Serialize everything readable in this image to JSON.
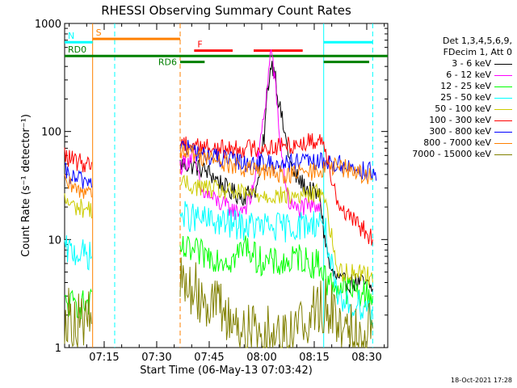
{
  "chart_data": {
    "type": "line",
    "title": "RHESSI Observing Summary Count Rates",
    "xlabel": "Start Time (06-May-13 07:03:42)",
    "ylabel": "Count Rate (s⁻¹ detector⁻¹)",
    "x_ticks": [
      "07:15",
      "07:30",
      "07:45",
      "08:00",
      "08:15",
      "08:30"
    ],
    "x_tick_minutes": [
      11.3,
      26.3,
      41.3,
      56.3,
      71.3,
      86.3
    ],
    "xlim_minutes": [
      0,
      92.3
    ],
    "y_scale": "log",
    "ylim": [
      1,
      1000
    ],
    "y_tick_labels": [
      "1",
      "10",
      "100",
      "1000"
    ],
    "flags": [
      {
        "label": "S",
        "color": "#ff8000",
        "segments": [
          [
            8,
            33
          ]
        ],
        "value": 720
      },
      {
        "label": "N",
        "color": "#00ffff",
        "segments": [
          [
            0,
            8
          ],
          [
            74,
            88
          ]
        ],
        "value": 670
      },
      {
        "label": "F",
        "color": "#ff0000",
        "segments": [
          [
            37,
            48
          ],
          [
            54,
            68
          ]
        ],
        "value": 560
      },
      {
        "label": "RD0",
        "color": "#008000",
        "segments": [
          [
            0,
            92.3
          ]
        ],
        "value": 500
      },
      {
        "label": "RD6",
        "color": "#008000",
        "segments": [
          [
            33,
            40
          ],
          [
            74,
            87
          ]
        ],
        "value": 440
      }
    ],
    "series": [
      {
        "name": "3 - 6 keV",
        "color": "#000000",
        "points": [
          [
            33,
            50
          ],
          [
            37,
            48
          ],
          [
            41,
            42
          ],
          [
            44,
            35
          ],
          [
            47,
            28
          ],
          [
            51,
            25
          ],
          [
            55,
            30
          ],
          [
            57,
            90
          ],
          [
            58,
            250
          ],
          [
            59,
            420
          ],
          [
            60,
            380
          ],
          [
            61,
            200
          ],
          [
            63,
            90
          ],
          [
            65,
            42
          ],
          [
            69,
            30
          ],
          [
            73,
            25
          ],
          [
            74,
            12
          ],
          [
            76,
            5
          ],
          [
            79,
            4
          ],
          [
            85,
            4
          ],
          [
            88,
            3.5
          ]
        ]
      },
      {
        "name": "6 - 12 keV",
        "color": "#ff00ff",
        "points": [
          [
            33,
            48
          ],
          [
            37,
            60
          ],
          [
            39,
            28
          ],
          [
            44,
            22
          ],
          [
            49,
            18
          ],
          [
            53,
            22
          ],
          [
            56,
            80
          ],
          [
            58,
            280
          ],
          [
            59,
            600
          ],
          [
            60,
            300
          ],
          [
            62,
            60
          ],
          [
            64,
            22
          ],
          [
            66,
            19
          ],
          [
            70,
            20
          ],
          [
            73,
            22
          ]
        ]
      },
      {
        "name": "12 - 25 keV",
        "color": "#00ff00",
        "points": [
          [
            0,
            2.5
          ],
          [
            8,
            2.5
          ],
          [
            33,
            8
          ],
          [
            42,
            7
          ],
          [
            48,
            6.5
          ],
          [
            52,
            9
          ],
          [
            55,
            6.5
          ],
          [
            60,
            6
          ],
          [
            64,
            6
          ],
          [
            67,
            7
          ],
          [
            70,
            6
          ],
          [
            73,
            6
          ],
          [
            75,
            4
          ],
          [
            80,
            3.5
          ],
          [
            88,
            3
          ]
        ]
      },
      {
        "name": "25 - 50 keV",
        "color": "#00ffff",
        "points": [
          [
            0,
            8
          ],
          [
            8,
            7
          ],
          [
            33,
            17
          ],
          [
            40,
            15
          ],
          [
            50,
            13.5
          ],
          [
            60,
            13
          ],
          [
            65,
            13
          ],
          [
            70,
            14
          ],
          [
            74,
            15
          ],
          [
            78,
            2.5
          ],
          [
            82,
            2.5
          ],
          [
            86,
            2.5
          ],
          [
            88,
            2
          ]
        ]
      },
      {
        "name": "50 - 100 keV",
        "color": "#cccc00",
        "points": [
          [
            0,
            23
          ],
          [
            3,
            20
          ],
          [
            8,
            19
          ],
          [
            33,
            33
          ],
          [
            40,
            30
          ],
          [
            48,
            27
          ],
          [
            56,
            26
          ],
          [
            65,
            25
          ],
          [
            70,
            26
          ],
          [
            74,
            28
          ],
          [
            78,
            5
          ],
          [
            86,
            5
          ],
          [
            88,
            4
          ]
        ]
      },
      {
        "name": "100 - 300 keV",
        "color": "#ff0000",
        "points": [
          [
            0,
            60
          ],
          [
            3,
            52
          ],
          [
            8,
            50
          ],
          [
            33,
            80
          ],
          [
            38,
            75
          ],
          [
            44,
            68
          ],
          [
            52,
            70
          ],
          [
            60,
            72
          ],
          [
            68,
            78
          ],
          [
            74,
            85
          ],
          [
            78,
            22
          ],
          [
            82,
            15
          ],
          [
            86,
            12
          ],
          [
            88,
            10
          ]
        ]
      },
      {
        "name": "300 - 800 keV",
        "color": "#0000ff",
        "points": [
          [
            0,
            42
          ],
          [
            3,
            36
          ],
          [
            8,
            35
          ],
          [
            33,
            75
          ],
          [
            40,
            60
          ],
          [
            50,
            52
          ],
          [
            60,
            50
          ],
          [
            70,
            52
          ],
          [
            74,
            52
          ],
          [
            78,
            50
          ],
          [
            82,
            46
          ],
          [
            88,
            42
          ],
          [
            89,
            35
          ]
        ]
      },
      {
        "name": "800 - 7000 keV",
        "color": "#ff8000",
        "points": [
          [
            0,
            33
          ],
          [
            4,
            28
          ],
          [
            8,
            30
          ],
          [
            33,
            68
          ],
          [
            40,
            58
          ],
          [
            48,
            48
          ],
          [
            56,
            42
          ],
          [
            64,
            40
          ],
          [
            70,
            42
          ],
          [
            74,
            45
          ],
          [
            78,
            47
          ],
          [
            84,
            42
          ],
          [
            88,
            37
          ]
        ]
      },
      {
        "name": "7000 - 15000 keV",
        "color": "#808000",
        "points": [
          [
            0,
            2
          ],
          [
            4,
            1.8
          ],
          [
            8,
            1.8
          ],
          [
            33,
            4
          ],
          [
            40,
            3
          ],
          [
            46,
            2
          ],
          [
            52,
            1.4
          ],
          [
            60,
            1.3
          ],
          [
            66,
            1.5
          ],
          [
            70,
            2
          ],
          [
            74,
            2.5
          ],
          [
            78,
            1.8
          ],
          [
            84,
            1.5
          ],
          [
            88,
            1.5
          ]
        ]
      }
    ],
    "vlines": [
      {
        "minute": 8.0,
        "color": "#ff8000",
        "style": "solid"
      },
      {
        "minute": 14.3,
        "color": "#00ffff",
        "style": "dashed"
      },
      {
        "minute": 33.0,
        "color": "#ff8000",
        "style": "dashed"
      },
      {
        "minute": 74.0,
        "color": "#00ffff",
        "style": "solid"
      },
      {
        "minute": 88.0,
        "color": "#00ffff",
        "style": "dashed"
      }
    ],
    "data_gaps": [
      [
        8.6,
        33.0
      ]
    ],
    "legend_header": [
      "Det 1,3,4,5,6,9,",
      "FDecim 1, Att 0"
    ],
    "legend_position": "right"
  },
  "footer": {
    "timestamp": "18-Oct-2021 17:28"
  }
}
